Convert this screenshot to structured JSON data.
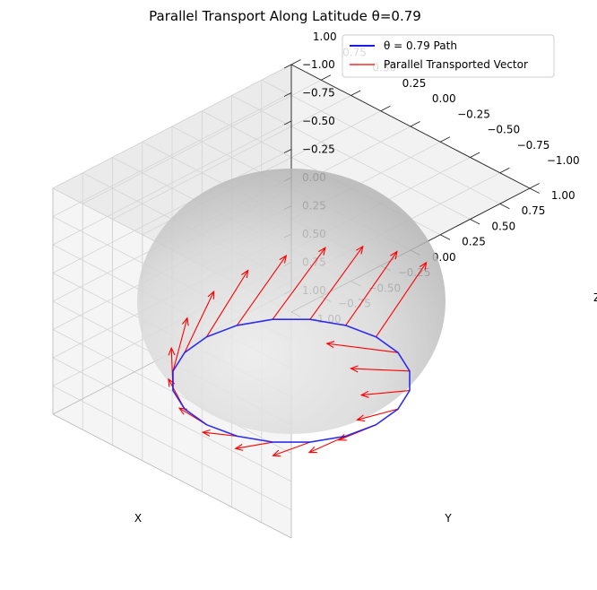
{
  "chart_data": {
    "type": "line",
    "projection": "3d",
    "title": "Parallel Transport Along Latitude θ=0.79",
    "xlabel": "X",
    "ylabel": "Y",
    "zlabel": "Z",
    "xlim": [
      -1.0,
      1.0
    ],
    "ylim": [
      -1.0,
      1.0
    ],
    "zlim": [
      -1.0,
      1.0
    ],
    "xticks": [
      "−1.00",
      "−0.75",
      "−0.50",
      "−0.25",
      "0.00",
      "0.25",
      "0.50",
      "0.75",
      "1.00"
    ],
    "yticks": [
      "−1.00",
      "−0.75",
      "−0.50",
      "−0.25",
      "0.00",
      "0.25",
      "0.50",
      "0.75",
      "1.00"
    ],
    "zticks": [
      "−1.00",
      "−0.75",
      "−0.50",
      "−0.25",
      "0.00",
      "0.25",
      "0.50",
      "0.75",
      "1.00"
    ],
    "grid": true,
    "legend_position": "top-right",
    "surface": {
      "type": "sphere",
      "radius": 1.0,
      "color": "#b8b8b8"
    },
    "theta": 0.79,
    "series": [
      {
        "name": "θ = 0.79 Path",
        "kind": "line",
        "color": "#1a1aee",
        "num_points": 20
      },
      {
        "name": "Parallel Transported Vector",
        "kind": "quiver",
        "color": "#ff0000",
        "num_vectors": 20,
        "length": 0.6
      }
    ]
  }
}
